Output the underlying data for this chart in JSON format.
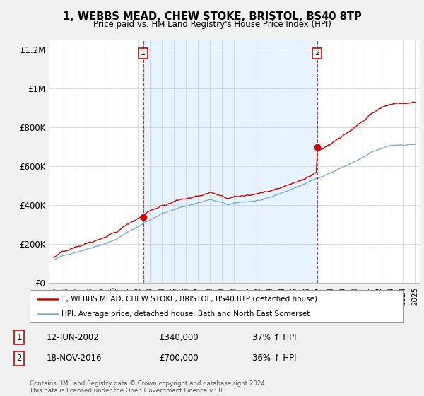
{
  "title": "1, WEBBS MEAD, CHEW STOKE, BRISTOL, BS40 8TP",
  "subtitle": "Price paid vs. HM Land Registry's House Price Index (HPI)",
  "legend_line1": "1, WEBBS MEAD, CHEW STOKE, BRISTOL, BS40 8TP (detached house)",
  "legend_line2": "HPI: Average price, detached house, Bath and North East Somerset",
  "sale1_date": "12-JUN-2002",
  "sale1_price": "£340,000",
  "sale1_hpi": "37% ↑ HPI",
  "sale2_date": "18-NOV-2016",
  "sale2_price": "£700,000",
  "sale2_hpi": "36% ↑ HPI",
  "footer": "Contains HM Land Registry data © Crown copyright and database right 2024.\nThis data is licensed under the Open Government Licence v3.0.",
  "red_color": "#cc0000",
  "blue_color": "#7aaed6",
  "shade_color": "#ddeeff",
  "sale1_x": 2002.44,
  "sale1_y": 340000,
  "sale2_x": 2016.88,
  "sale2_y": 700000,
  "ylim": [
    0,
    1250000
  ],
  "xlim_start": 1994.6,
  "xlim_end": 2025.4,
  "yticks": [
    0,
    200000,
    400000,
    600000,
    800000,
    1000000,
    1200000
  ],
  "ytick_labels": [
    "£0",
    "£200K",
    "£400K",
    "£600K",
    "£800K",
    "£1M",
    "£1.2M"
  ],
  "background_color": "#f0f0f0",
  "plot_background": "#ffffff"
}
